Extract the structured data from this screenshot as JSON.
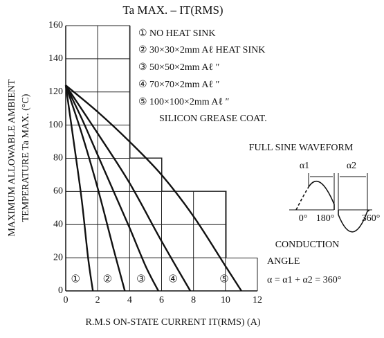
{
  "chart_data": {
    "type": "line",
    "title": "Ta MAX. – IT(RMS)",
    "x_label": "R.M.S ON-STATE CURRENT  IT(RMS)  (A)",
    "y_label": [
      "MAXIMUM ALLOWABLE AMBIENT",
      "TEMPERATURE  Ta MAX.  (°C)"
    ],
    "legend": [
      "①  NO HEAT SINK",
      "②  30×30×2mm     Aℓ HEAT SINK",
      "③  50×50×2mm     Aℓ          ″",
      "④  70×70×2mm     Aℓ          ″",
      "⑤  100×100×2mm Aℓ          ″"
    ],
    "annotations": [
      "SILICON GREASE COAT.",
      "FULL SINE WAVEFORM",
      "α1",
      "α2",
      "0°",
      "180°",
      "360°",
      "CONDUCTION",
      "ANGLE",
      "α = α1 + α2 = 360°"
    ],
    "series": [
      {
        "name": "①",
        "color": "#111",
        "x": [
          0,
          0.5,
          1,
          1.4,
          1.7
        ],
        "values": [
          124,
          90,
          55,
          20,
          0
        ]
      },
      {
        "name": "②",
        "color": "#111",
        "x": [
          0,
          1,
          2,
          3,
          3.7
        ],
        "values": [
          124,
          95,
          62,
          25,
          0
        ]
      },
      {
        "name": "③",
        "color": "#111",
        "x": [
          0,
          1,
          2,
          3,
          4,
          5,
          5.8
        ],
        "values": [
          124,
          104,
          82,
          60,
          38,
          15,
          0
        ]
      },
      {
        "name": "④",
        "color": "#111",
        "x": [
          0,
          2,
          4,
          6,
          7.8
        ],
        "values": [
          124,
          95,
          65,
          30,
          0
        ]
      },
      {
        "name": "⑤",
        "color": "#111",
        "x": [
          0,
          2,
          4,
          6,
          8,
          10,
          11
        ],
        "values": [
          124,
          108,
          90,
          70,
          45,
          15,
          0
        ]
      }
    ],
    "xlim": [
      0,
      12
    ],
    "xticks": [
      0,
      2,
      4,
      6,
      8,
      10,
      12
    ],
    "ylim": [
      0,
      160
    ],
    "yticks": [
      0,
      20,
      40,
      60,
      80,
      100,
      120,
      140,
      160
    ],
    "grid": true
  }
}
